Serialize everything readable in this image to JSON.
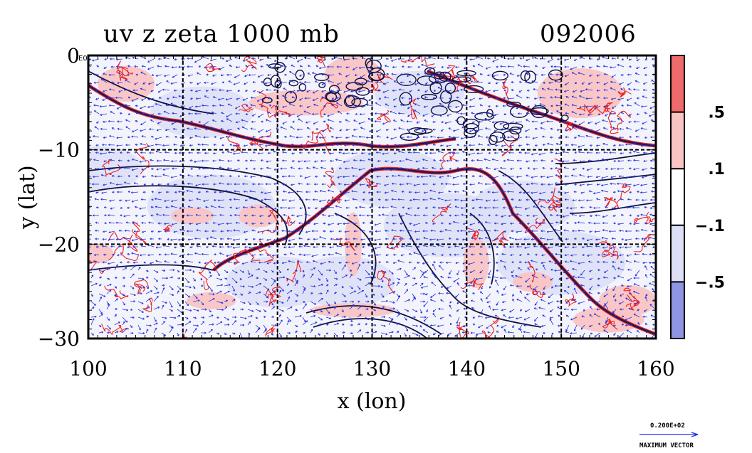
{
  "header": {
    "title_left": "uv z zeta 1000 mb",
    "title_right": "092006"
  },
  "chart_data": {
    "type": "heatmap",
    "subtype": "filled contour map with wind vectors and contour lines",
    "xlabel": "x (lon)",
    "ylabel": "y (lat)",
    "xlim": [
      100,
      160
    ],
    "ylim": [
      -30,
      0
    ],
    "x_ticks": [
      100,
      110,
      120,
      130,
      140,
      150,
      160
    ],
    "y_ticks": [
      -30,
      -20,
      -10,
      0
    ],
    "y_tick_labels": [
      "−30",
      "−20",
      "−10",
      "0"
    ],
    "corner_label": "E0",
    "grid": true,
    "colorbar": {
      "levels": [
        ".5",
        ".1",
        "−.1",
        "−.5"
      ],
      "colors": [
        "#ef6a6a",
        "#f9c4c4",
        "#ffffff",
        "#dcdff6",
        "#8f95e2"
      ]
    },
    "colors": {
      "vector": "#2233dd",
      "positive_contour": "#ee2222",
      "negative_fill": "#dcdff6",
      "positive_fill": "#f9c4c4",
      "height_contour": "#101040",
      "coast": "#1a1a5a"
    },
    "vector_legend": {
      "value": "0.200E+02",
      "label": "MAXIMUM VECTOR"
    }
  }
}
